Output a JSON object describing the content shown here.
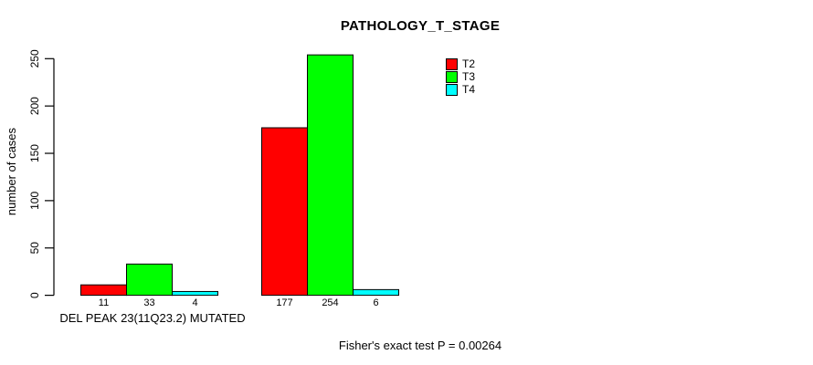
{
  "chart_data": {
    "type": "bar",
    "title": "PATHOLOGY_T_STAGE",
    "ylabel": "number of cases",
    "xlabel": "DEL PEAK 23(11Q23.2) MUTATED",
    "ylim": [
      0,
      250
    ],
    "yticks": [
      0,
      50,
      100,
      150,
      200,
      250
    ],
    "grid": false,
    "legend_position": "top-right",
    "categories": [
      "DEL PEAK 23(11Q23.2) MUTATED",
      ""
    ],
    "series": [
      {
        "name": "T2",
        "color": "#ff0000",
        "values": [
          11,
          177
        ]
      },
      {
        "name": "T3",
        "color": "#00ff00",
        "values": [
          33,
          254
        ]
      },
      {
        "name": "T4",
        "color": "#00ffff",
        "values": [
          4,
          6
        ]
      }
    ],
    "annotation": "Fisher's exact test P = 0.00264"
  },
  "colors": {
    "axis": "#000000",
    "bar_border": "#000000",
    "background": "#ffffff"
  }
}
